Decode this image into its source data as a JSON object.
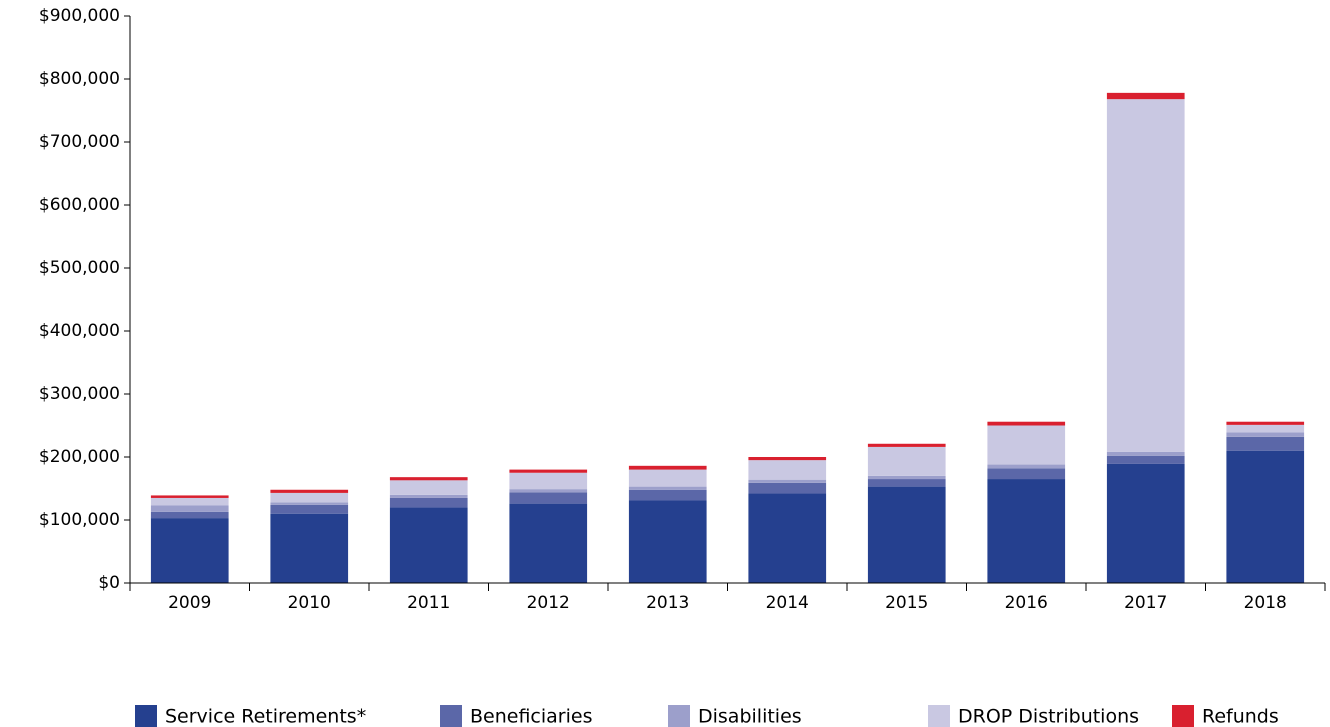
{
  "chart_data": {
    "type": "stacked-bar",
    "categories": [
      "2009",
      "2010",
      "2011",
      "2012",
      "2013",
      "2014",
      "2015",
      "2016",
      "2017",
      "2018"
    ],
    "series": [
      {
        "name": "Service Retirements*",
        "color": "#25408f",
        "values": [
          103000,
          110000,
          120000,
          126000,
          131000,
          142000,
          153000,
          165000,
          189000,
          210000
        ]
      },
      {
        "name": "Beneficiaries",
        "color": "#5b67a8",
        "values": [
          10000,
          14000,
          15000,
          18000,
          17000,
          17000,
          12000,
          17000,
          13000,
          22000
        ]
      },
      {
        "name": "Disabilities",
        "color": "#9c9fcb",
        "values": [
          10000,
          4000,
          5000,
          5000,
          5000,
          5000,
          5000,
          6000,
          6000,
          7000
        ]
      },
      {
        "name": "DROP Distributions",
        "color": "#c9c8e2",
        "values": [
          12000,
          15000,
          23000,
          26000,
          27000,
          31000,
          46000,
          62000,
          560000,
          12000
        ]
      },
      {
        "name": "Refunds",
        "color": "#d9202f",
        "values": [
          4000,
          5000,
          5000,
          5000,
          6000,
          5000,
          5000,
          6000,
          10000,
          5000
        ]
      }
    ],
    "ylim": [
      0,
      900000
    ],
    "yticks": [
      {
        "value": 0,
        "label": "$0"
      },
      {
        "value": 100000,
        "label": "$100,000"
      },
      {
        "value": 200000,
        "label": "$200,000"
      },
      {
        "value": 300000,
        "label": "$300,000"
      },
      {
        "value": 400000,
        "label": "$400,000"
      },
      {
        "value": 500000,
        "label": "$500,000"
      },
      {
        "value": 600000,
        "label": "$600,000"
      },
      {
        "value": 700000,
        "label": "$700,000"
      },
      {
        "value": 800000,
        "label": "$800,000"
      },
      {
        "value": 900000,
        "label": "$900,000"
      }
    ],
    "grid": false,
    "legend": "bottom"
  }
}
